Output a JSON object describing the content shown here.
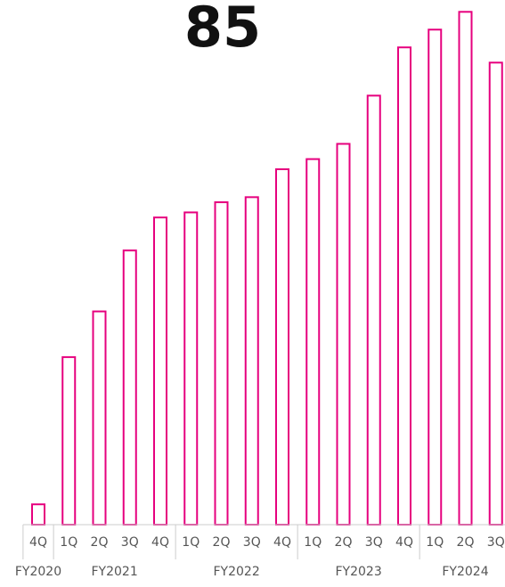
{
  "headline_value": "85",
  "colors": {
    "bar_stroke": "#e6007e",
    "bar_fill": "#ffffff",
    "axis_lines": "#cccccc",
    "tick_text": "#555555",
    "headline_text": "#111111"
  },
  "chart_data": {
    "type": "bar",
    "title": "",
    "xlabel": "",
    "ylabel": "",
    "grid": false,
    "legend": "none",
    "ylim": [
      0,
      100
    ],
    "categories": [
      "4Q",
      "1Q",
      "2Q",
      "3Q",
      "4Q",
      "1Q",
      "2Q",
      "3Q",
      "4Q",
      "1Q",
      "2Q",
      "3Q",
      "4Q",
      "1Q",
      "2Q",
      "3Q"
    ],
    "category_groups": [
      {
        "label": "FY2020",
        "count": 1
      },
      {
        "label": "FY2021",
        "count": 4
      },
      {
        "label": "FY2022",
        "count": 4
      },
      {
        "label": "FY2023",
        "count": 4
      },
      {
        "label": "FY2024",
        "count": 3
      }
    ],
    "values": [
      4,
      33,
      42,
      54,
      60.5,
      61.5,
      63.5,
      64.5,
      70,
      72,
      75,
      84.5,
      94,
      97.5,
      101,
      91
    ]
  }
}
